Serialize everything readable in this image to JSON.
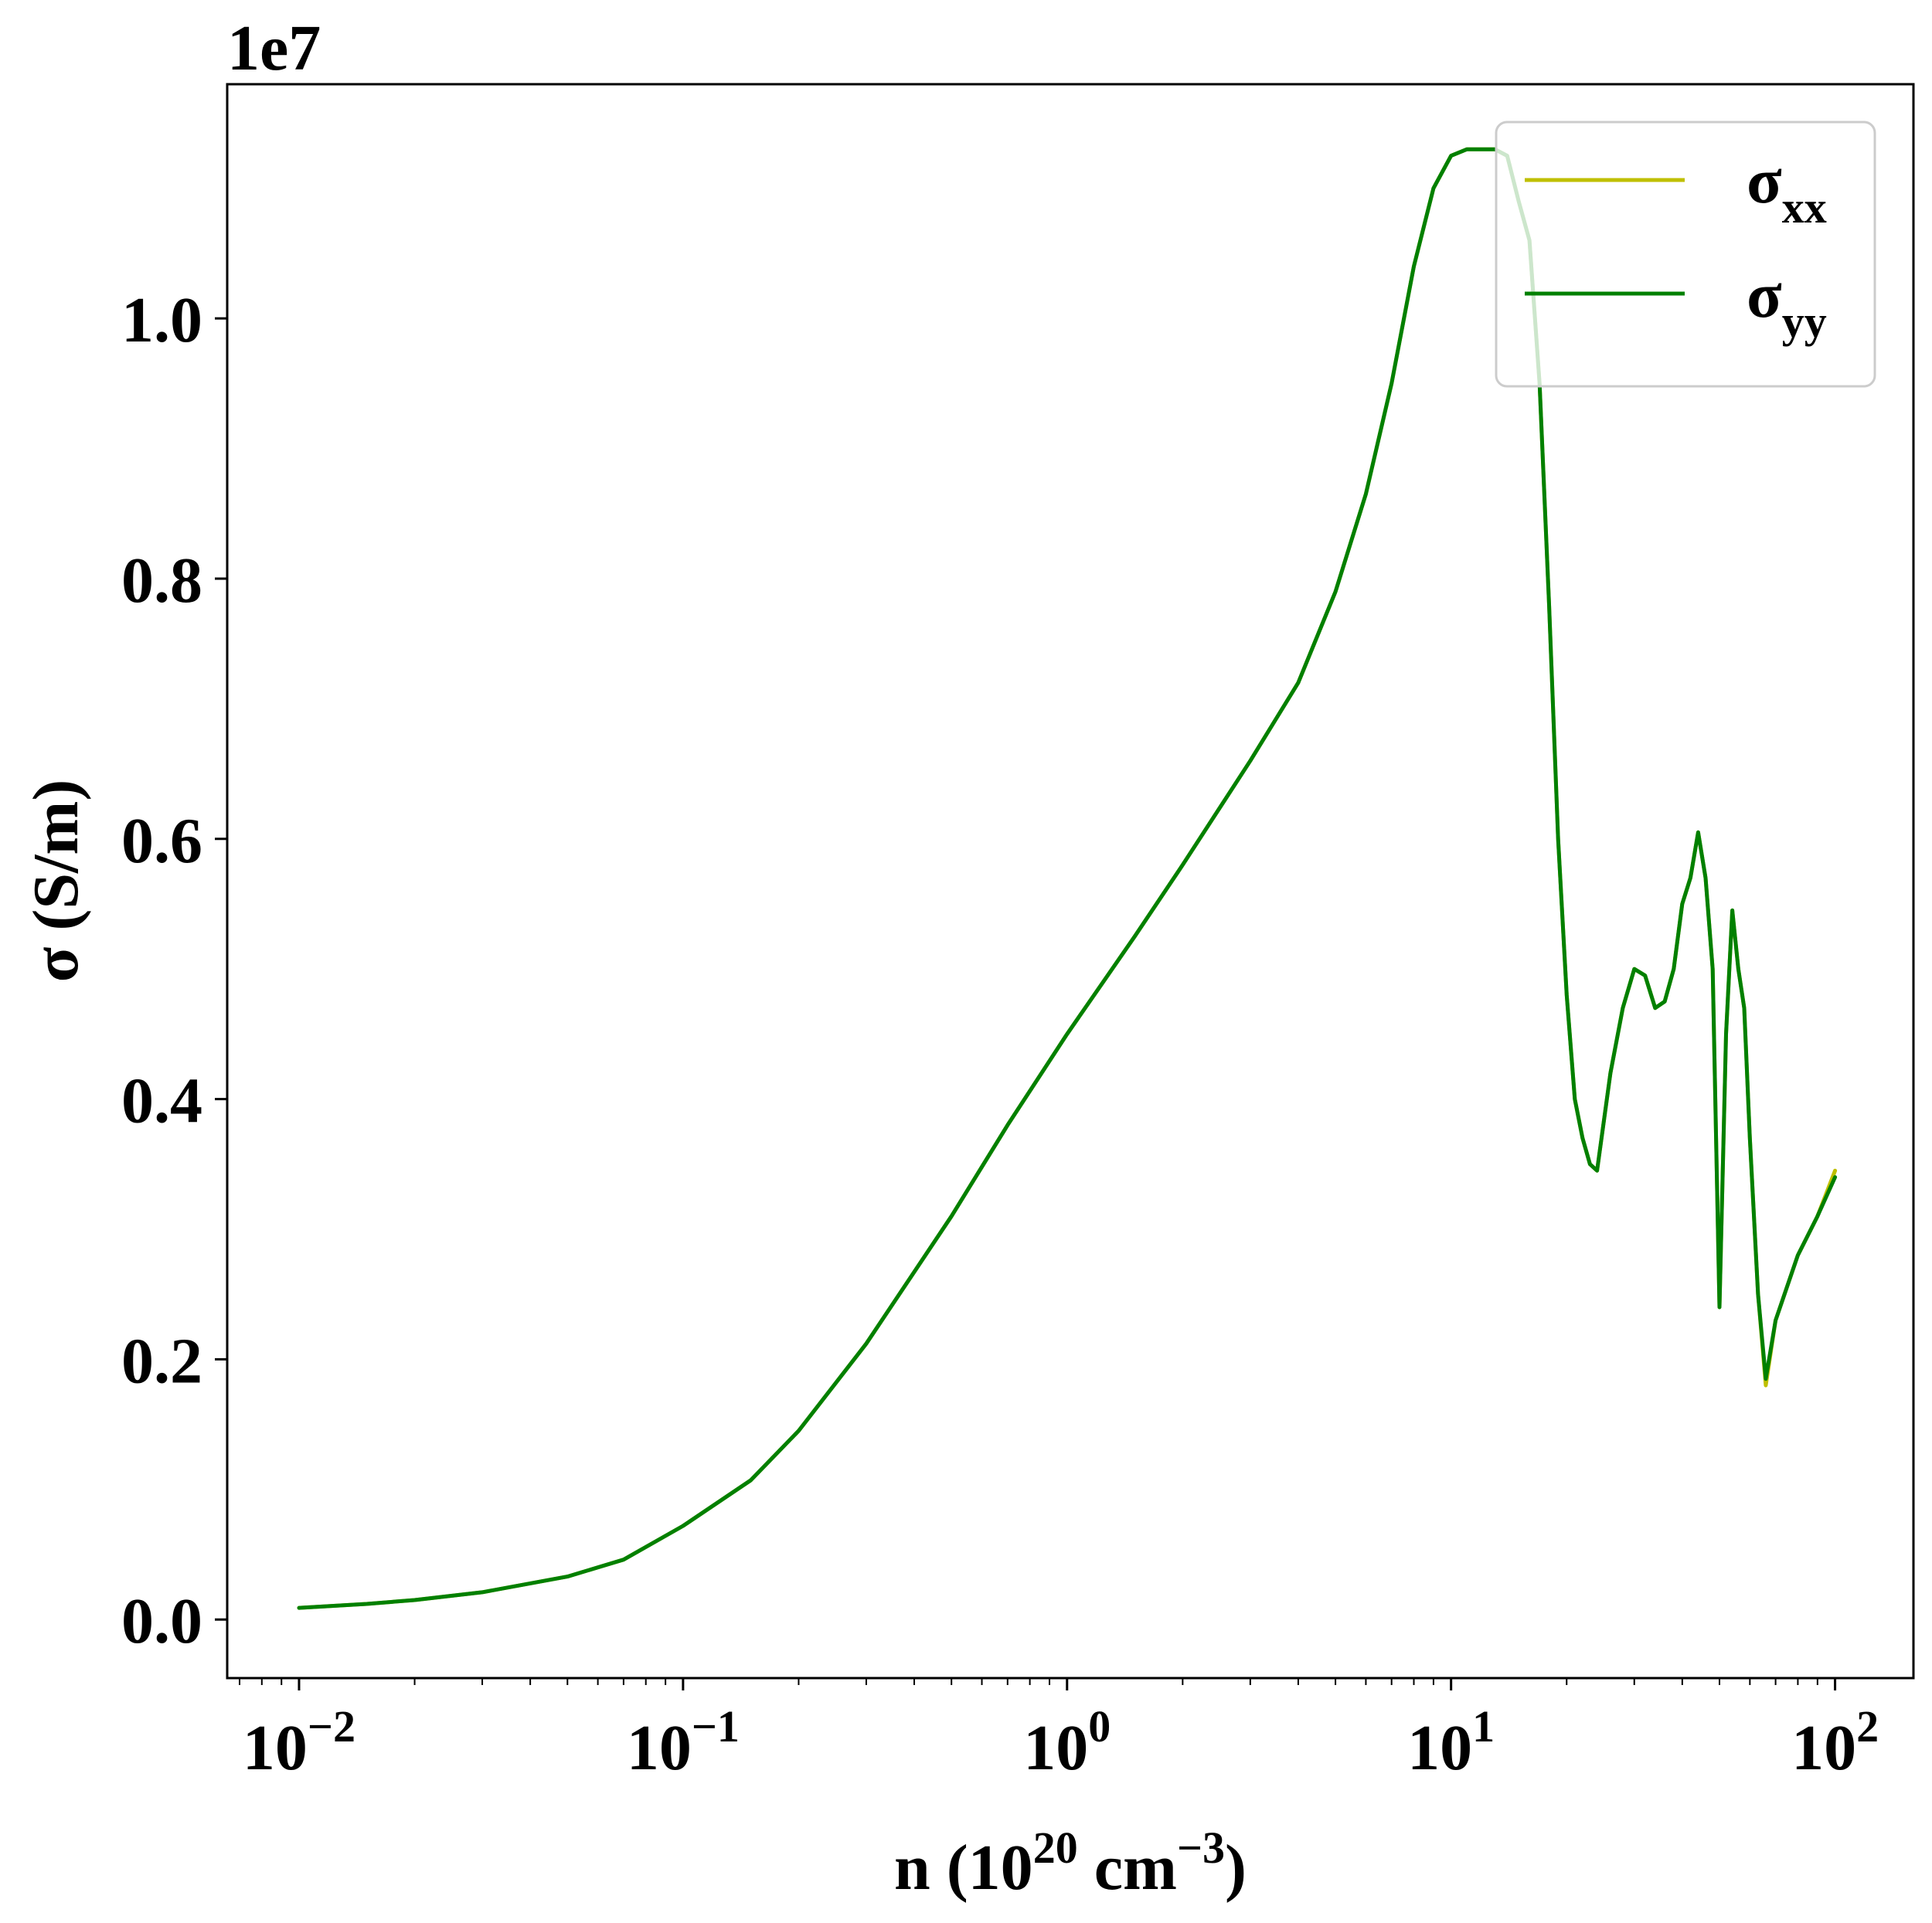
{
  "chart_data": {
    "type": "line",
    "title": "",
    "x_scale": "log",
    "xlim": [
      0.0065,
      160
    ],
    "ylim": [
      -0.045,
      1.18
    ],
    "y_offset_label": "1e7",
    "xlabel": {
      "base": "n (10",
      "sup1": "20",
      "mid": " cm",
      "sup2": "−3",
      "end": ")"
    },
    "ylabel": "σ (S/m)",
    "x_ticks": [
      {
        "value": 0.01,
        "base": "10",
        "exp": "−2"
      },
      {
        "value": 0.1,
        "base": "10",
        "exp": "−1"
      },
      {
        "value": 1,
        "base": "10",
        "exp": "0"
      },
      {
        "value": 10,
        "base": "10",
        "exp": "1"
      },
      {
        "value": 100,
        "base": "10",
        "exp": "2"
      }
    ],
    "y_ticks": [
      {
        "value": 0.0,
        "label": "0.0"
      },
      {
        "value": 0.2,
        "label": "0.2"
      },
      {
        "value": 0.4,
        "label": "0.4"
      },
      {
        "value": 0.6,
        "label": "0.6"
      },
      {
        "value": 0.8,
        "label": "0.8"
      },
      {
        "value": 1.0,
        "label": "1.0"
      }
    ],
    "grid": false,
    "legend_position": "top-right",
    "series": [
      {
        "name": "σ",
        "sub": "xx",
        "color": "#bfbf00",
        "points": [
          [
            0.01,
            0.009
          ],
          [
            0.015,
            0.012
          ],
          [
            0.02,
            0.015
          ],
          [
            0.03,
            0.021
          ],
          [
            0.05,
            0.033
          ],
          [
            0.07,
            0.046
          ],
          [
            0.1,
            0.072
          ],
          [
            0.15,
            0.107
          ],
          [
            0.2,
            0.145
          ],
          [
            0.3,
            0.212
          ],
          [
            0.5,
            0.31
          ],
          [
            0.7,
            0.38
          ],
          [
            1.0,
            0.45
          ],
          [
            1.5,
            0.525
          ],
          [
            2.0,
            0.58
          ],
          [
            3.0,
            0.66
          ],
          [
            4.0,
            0.72
          ],
          [
            5.0,
            0.79
          ],
          [
            6.0,
            0.865
          ],
          [
            7.0,
            0.95
          ],
          [
            8.0,
            1.04
          ],
          [
            9.0,
            1.1
          ],
          [
            10.0,
            1.125
          ],
          [
            11.0,
            1.13
          ],
          [
            12.0,
            1.13
          ],
          [
            13.0,
            1.13
          ],
          [
            14.0,
            1.125
          ],
          [
            15.0,
            1.09
          ],
          [
            16.0,
            1.06
          ],
          [
            17.0,
            0.95
          ],
          [
            18.0,
            0.78
          ],
          [
            19.0,
            0.6
          ],
          [
            20.0,
            0.48
          ],
          [
            21.0,
            0.4
          ],
          [
            22.0,
            0.37
          ],
          [
            23.0,
            0.35
          ],
          [
            24.0,
            0.345
          ],
          [
            26.0,
            0.42
          ],
          [
            28.0,
            0.47
          ],
          [
            30.0,
            0.5
          ],
          [
            32.0,
            0.495
          ],
          [
            34.0,
            0.47
          ],
          [
            36.0,
            0.475
          ],
          [
            38.0,
            0.5
          ],
          [
            40.0,
            0.55
          ],
          [
            42.0,
            0.57
          ],
          [
            44.0,
            0.605
          ],
          [
            46.0,
            0.57
          ],
          [
            48.0,
            0.5
          ],
          [
            50.0,
            0.24
          ],
          [
            52.0,
            0.45
          ],
          [
            54.0,
            0.545
          ],
          [
            56.0,
            0.5
          ],
          [
            58.0,
            0.47
          ],
          [
            60.0,
            0.37
          ],
          [
            63.0,
            0.25
          ],
          [
            66.0,
            0.18
          ],
          [
            70.0,
            0.23
          ],
          [
            80.0,
            0.28
          ],
          [
            90.0,
            0.31
          ],
          [
            100.0,
            0.345
          ]
        ]
      },
      {
        "name": "σ",
        "sub": "yy",
        "color": "#008000",
        "points": [
          [
            0.01,
            0.009
          ],
          [
            0.015,
            0.012
          ],
          [
            0.02,
            0.015
          ],
          [
            0.03,
            0.021
          ],
          [
            0.05,
            0.033
          ],
          [
            0.07,
            0.046
          ],
          [
            0.1,
            0.072
          ],
          [
            0.15,
            0.107
          ],
          [
            0.2,
            0.145
          ],
          [
            0.3,
            0.212
          ],
          [
            0.5,
            0.31
          ],
          [
            0.7,
            0.38
          ],
          [
            1.0,
            0.45
          ],
          [
            1.5,
            0.525
          ],
          [
            2.0,
            0.58
          ],
          [
            3.0,
            0.66
          ],
          [
            4.0,
            0.72
          ],
          [
            5.0,
            0.79
          ],
          [
            6.0,
            0.865
          ],
          [
            7.0,
            0.95
          ],
          [
            8.0,
            1.04
          ],
          [
            9.0,
            1.1
          ],
          [
            10.0,
            1.125
          ],
          [
            11.0,
            1.13
          ],
          [
            12.0,
            1.13
          ],
          [
            13.0,
            1.13
          ],
          [
            14.0,
            1.125
          ],
          [
            15.0,
            1.09
          ],
          [
            16.0,
            1.06
          ],
          [
            17.0,
            0.95
          ],
          [
            18.0,
            0.78
          ],
          [
            19.0,
            0.6
          ],
          [
            20.0,
            0.48
          ],
          [
            21.0,
            0.4
          ],
          [
            22.0,
            0.37
          ],
          [
            23.0,
            0.35
          ],
          [
            24.0,
            0.345
          ],
          [
            26.0,
            0.42
          ],
          [
            28.0,
            0.47
          ],
          [
            30.0,
            0.5
          ],
          [
            32.0,
            0.495
          ],
          [
            34.0,
            0.47
          ],
          [
            36.0,
            0.475
          ],
          [
            38.0,
            0.5
          ],
          [
            40.0,
            0.55
          ],
          [
            42.0,
            0.57
          ],
          [
            44.0,
            0.605
          ],
          [
            46.0,
            0.57
          ],
          [
            48.0,
            0.5
          ],
          [
            50.0,
            0.24
          ],
          [
            52.0,
            0.45
          ],
          [
            54.0,
            0.545
          ],
          [
            56.0,
            0.5
          ],
          [
            58.0,
            0.47
          ],
          [
            60.0,
            0.37
          ],
          [
            63.0,
            0.25
          ],
          [
            66.0,
            0.185
          ],
          [
            70.0,
            0.23
          ],
          [
            80.0,
            0.28
          ],
          [
            90.0,
            0.31
          ],
          [
            100.0,
            0.34
          ]
        ]
      }
    ]
  }
}
